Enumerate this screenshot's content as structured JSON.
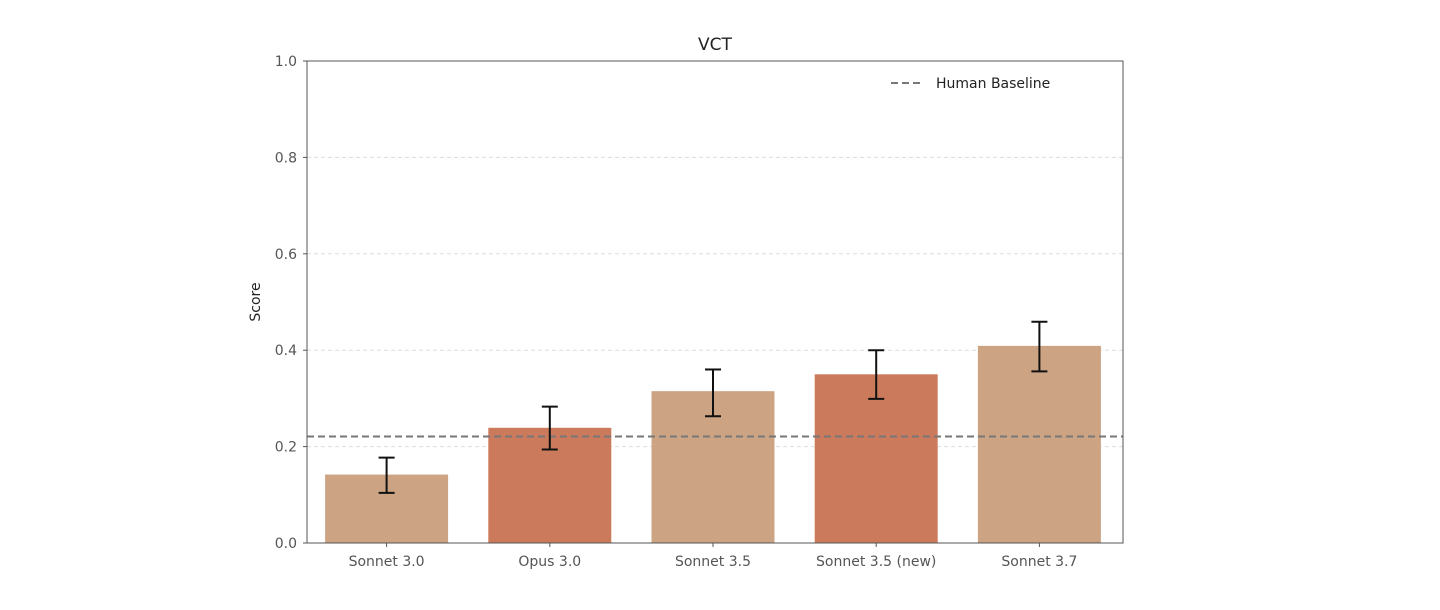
{
  "chart_data": {
    "type": "bar",
    "title": "VCT",
    "xlabel": "",
    "ylabel": "Score",
    "ylim": [
      0,
      1.0
    ],
    "yticks": [
      "0.0",
      "0.2",
      "0.4",
      "0.6",
      "0.8",
      "1.0"
    ],
    "grid": "horizontal dashed",
    "legend_placement": "top-right",
    "categories": [
      "Sonnet 3.0",
      "Opus 3.0",
      "Sonnet 3.5",
      "Sonnet 3.5 (new)",
      "Sonnet 3.7"
    ],
    "values": [
      0.142,
      0.239,
      0.315,
      0.35,
      0.409
    ],
    "error_low": [
      0.104,
      0.194,
      0.263,
      0.299,
      0.356
    ],
    "error_high": [
      0.177,
      0.283,
      0.36,
      0.4,
      0.459
    ],
    "bar_colors": [
      "#cca483",
      "#cc7a5c",
      "#cca483",
      "#cc7a5c",
      "#cca483"
    ],
    "reference_line": {
      "name": "Human Baseline",
      "value": 0.221,
      "color": "#777777",
      "style": "dashed"
    }
  }
}
